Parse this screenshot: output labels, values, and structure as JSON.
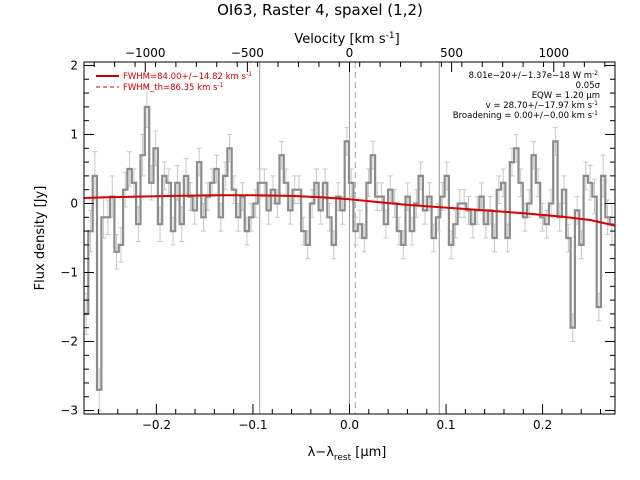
{
  "chart_data": {
    "type": "line",
    "title": "OI63, Raster 4, spaxel (1,2)",
    "xlabel": "λ−λ",
    "xlabel_sub": "rest",
    "xlabel_unit": " [μm]",
    "ylabel": "Flux density [Jy]",
    "top_axis_label": "Velocity [km s",
    "top_axis_label_sup": "-1",
    "top_axis_label_end": "]",
    "xlim": [
      -0.275,
      0.275
    ],
    "ylim": [
      -3.05,
      2.05
    ],
    "vlim": [
      -1300,
      1300
    ],
    "x_ticks": [
      -0.2,
      -0.1,
      0.0,
      0.1,
      0.2
    ],
    "x_tick_labels": [
      "−0.2",
      "−0.1",
      "0.0",
      "0.1",
      "0.2"
    ],
    "y_ticks": [
      -3,
      -2,
      -1,
      0,
      1,
      2
    ],
    "y_tick_labels": [
      "−3",
      "−2",
      "−1",
      "0",
      "1",
      "2"
    ],
    "v_ticks": [
      -1000,
      -500,
      0,
      500,
      1000
    ],
    "v_tick_labels": [
      "−1000",
      "−500",
      "0",
      "500",
      "1000"
    ],
    "vertical_lines": [
      -0.093,
      0.0,
      0.093
    ],
    "dashed_vertical_lines": [
      0.006
    ],
    "legend": [
      {
        "label": "FWHM=84.00+/−14.82 km s",
        "sup": "-1",
        "style": "solid"
      },
      {
        "label": "FWHM_th=86.35 km s",
        "sup": "-1",
        "style": "dashed"
      }
    ],
    "annotations": [
      {
        "text": "8.01e−20+/−1.37e−18 W m",
        "sup": "-2"
      },
      {
        "text": "0.05σ",
        "sup": ""
      },
      {
        "text": "EQW = 1.20 μm",
        "sup": ""
      },
      {
        "text": "v = 28.70+/−17.97 km s",
        "sup": "-1"
      },
      {
        "text": "Broadening = 0.00+/−0.00 km s",
        "sup": "-1"
      }
    ],
    "series": [
      {
        "type": "step",
        "x_start": -0.275,
        "x_step": 0.0045,
        "error": [
          0.3,
          0.3,
          0.35,
          0.3,
          0.3,
          0.25,
          0.3,
          0.25,
          0.25,
          0.25,
          0.25,
          0.2,
          0.25,
          0.3,
          0.3,
          0.25,
          0.25,
          0.25,
          0.2,
          0.2,
          0.2,
          0.25,
          0.25,
          0.25,
          0.2,
          0.2,
          0.2,
          0.2,
          0.2,
          0.2,
          0.2,
          0.2,
          0.2,
          0.2,
          0.2,
          0.2,
          0.2,
          0.2,
          0.2,
          0.2,
          0.2,
          0.2,
          0.2,
          0.2,
          0.2,
          0.2,
          0.2,
          0.2,
          0.2,
          0.2,
          0.2,
          0.2,
          0.2,
          0.2,
          0.2,
          0.2,
          0.2,
          0.2,
          0.2,
          0.2,
          0.2,
          0.2,
          0.2,
          0.2,
          0.2,
          0.2,
          0.2,
          0.2,
          0.2,
          0.2,
          0.2,
          0.2,
          0.2,
          0.2,
          0.2,
          0.2,
          0.2,
          0.2,
          0.2,
          0.2,
          0.2,
          0.2,
          0.2,
          0.2,
          0.2,
          0.2,
          0.2,
          0.2,
          0.2,
          0.2,
          0.2,
          0.2,
          0.2,
          0.2,
          0.2,
          0.2,
          0.2,
          0.2,
          0.2,
          0.2,
          0.2,
          0.2,
          0.2,
          0.2,
          0.2,
          0.2,
          0.2,
          0.2,
          0.2,
          0.2,
          0.2,
          0.2,
          0.2,
          0.2,
          0.2,
          0.2,
          0.25,
          0.25,
          0.2,
          0.3,
          0.25,
          0.3
        ],
        "values": [
          -1.6,
          -0.4,
          0.4,
          -2.7,
          -0.2,
          -0.2,
          0.1,
          -0.7,
          -0.6,
          0.2,
          0.5,
          0.3,
          -0.3,
          0.7,
          1.4,
          0.3,
          0.8,
          -0.3,
          0.4,
          0.3,
          -0.4,
          0.3,
          -0.3,
          0.4,
          0.1,
          -0.1,
          0.6,
          -0.2,
          0.1,
          0.3,
          0.5,
          -0.2,
          0.4,
          0.8,
          0.2,
          -0.2,
          0.1,
          -0.4,
          -0.2,
          0.0,
          0.3,
          0.3,
          -0.1,
          0.2,
          0.0,
          0.7,
          0.3,
          -0.1,
          0.2,
          0.2,
          -0.4,
          -0.6,
          0.0,
          0.3,
          -0.1,
          0.3,
          -0.2,
          -0.6,
          0.1,
          -0.1,
          0.9,
          0.3,
          -0.4,
          -0.3,
          -0.5,
          0.3,
          0.7,
          0.1,
          0.1,
          -0.3,
          0.2,
          0.0,
          -0.4,
          -0.6,
          0.1,
          -0.4,
          0.0,
          0.4,
          -0.1,
          0.1,
          -0.5,
          -0.2,
          0.1,
          0.4,
          -0.6,
          -0.3,
          0.0,
          0.0,
          -0.1,
          -0.3,
          -0.1,
          0.1,
          -0.3,
          -0.1,
          -0.5,
          0.2,
          0.3,
          -0.5,
          0.6,
          0.8,
          0.3,
          -0.2,
          0.0,
          0.7,
          0.3,
          -0.2,
          -0.3,
          0.0,
          0.9,
          -0.2,
          0.2,
          -0.5,
          -1.8,
          -0.1,
          -0.6,
          0.4,
          0.3,
          0.1,
          -1.5,
          0.4,
          -0.2,
          -0.3
        ]
      },
      {
        "type": "model",
        "color": "#dd0000",
        "x": [
          -0.275,
          -0.25,
          -0.22,
          -0.18,
          -0.14,
          -0.1,
          -0.06,
          -0.03,
          0.0,
          0.03,
          0.06,
          0.1,
          0.14,
          0.18,
          0.22,
          0.25,
          0.275
        ],
        "y": [
          0.08,
          0.09,
          0.1,
          0.11,
          0.12,
          0.12,
          0.11,
          0.09,
          0.06,
          0.02,
          -0.02,
          -0.06,
          -0.1,
          -0.14,
          -0.19,
          -0.24,
          -0.32
        ]
      }
    ]
  }
}
